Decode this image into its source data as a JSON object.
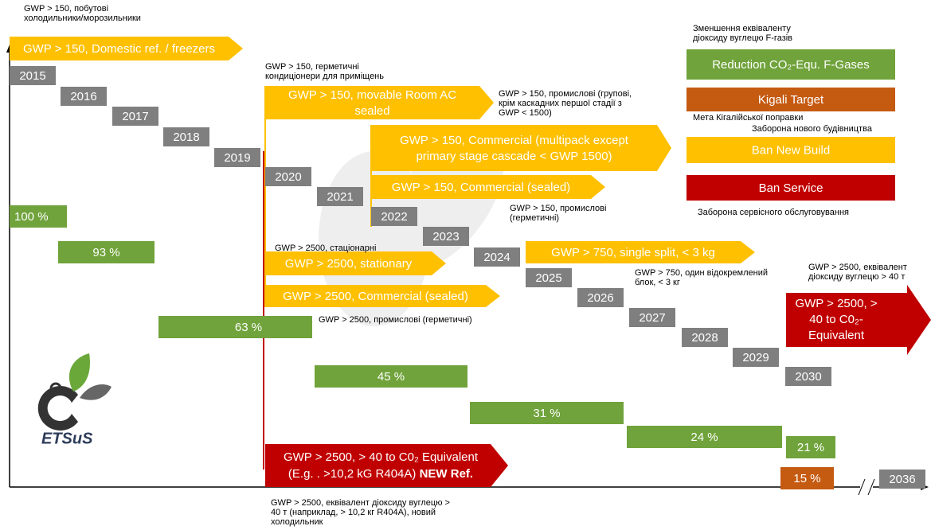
{
  "years": [
    "2015",
    "2016",
    "2017",
    "2018",
    "2019",
    "2020",
    "2021",
    "2022",
    "2023",
    "2024",
    "2025",
    "2026",
    "2027",
    "2028",
    "2029",
    "2030"
  ],
  "end_year": "2036",
  "percents": [
    "100 %",
    "93 %",
    "63 %",
    "45 %",
    "31 %",
    "24 %",
    "21 %",
    "15 %"
  ],
  "yellow_arrows": [
    {
      "label": [
        "GWP > 150, Domestic ref. / freezers"
      ],
      "note": [
        "GWP > 150, побутові",
        "холодильники/морозильники"
      ]
    },
    {
      "label": [
        "GWP > 150, movable Room AC",
        "sealed"
      ],
      "note": [
        "GWP > 150, герметичні",
        "кондиціонери для приміщень"
      ]
    },
    {
      "label": [
        "GWP > 150, Commercial (multipack  except",
        "primary stage cascade < GWP 1500)"
      ],
      "note": [
        "GWP > 150, промислові (групові,",
        "крім каскадних першої стадії з",
        "GWP < 1500)"
      ]
    },
    {
      "label": [
        "GWP > 150, Commercial (sealed)"
      ],
      "note": [
        "GWP > 150, промислові",
        "(герметичні)"
      ]
    },
    {
      "label": [
        "GWP > 750, single split, < 3 kg"
      ],
      "note": [
        "GWP > 750, один відокремлений",
        "блок, < 3 кг"
      ]
    },
    {
      "label": [
        "GWP > 2500, stationary"
      ],
      "note": [
        "GWP > 2500, стаціонарні"
      ]
    },
    {
      "label": [
        "GWP > 2500, Commercial (sealed)"
      ],
      "note": [
        "GWP > 2500, промислові (герметичні)"
      ]
    }
  ],
  "red_arrows": [
    {
      "label": [
        "GWP > 2500, >",
        "40 to C0₂-",
        "Equivalent"
      ],
      "note": [
        "GWP > 2500, еквівалент",
        "діоксиду вуглецю > 40 т"
      ]
    },
    {
      "label": [
        "GWP > 2500, > 40 to C0₂ Equivalent",
        "(E.g. . >10,2 kG R404A) "
      ],
      "bold": "NEW Ref.",
      "note": [
        "GWP > 2500, еквівалент діоксиду вуглецю >",
        "40 т (наприклад, > 10,2 кг R404A), новий",
        "холодильник"
      ]
    }
  ],
  "legend": [
    {
      "label": "Reduction CO₂-Equ. F-Gases",
      "note": [
        "Зменшення еквіваленту",
        "діоксиду вуглецю F-газів"
      ]
    },
    {
      "label": "Kigali Target",
      "note": [
        "Мета Кігалійської поправки"
      ]
    },
    {
      "label": "Ban New Build",
      "note": [
        "Заборона нового будівництва"
      ]
    },
    {
      "label": "Ban Service",
      "note": [
        "Заборона сервісного обслуговування"
      ]
    }
  ],
  "logo": "ETSuS"
}
